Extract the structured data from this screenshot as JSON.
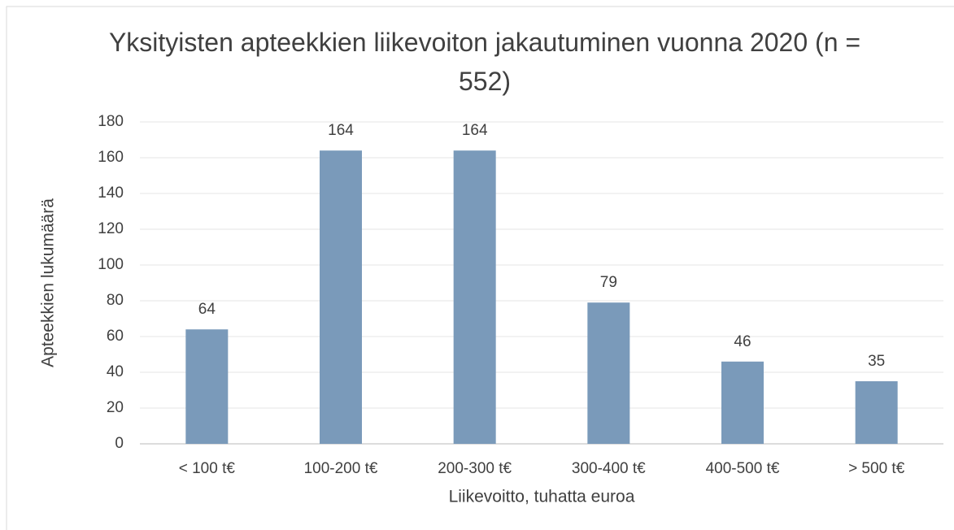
{
  "chart_data": {
    "type": "bar",
    "title": "Yksityisten apteekkien liikevoiton jakautuminen vuonna 2020 (n = 552)",
    "categories": [
      "< 100 t€",
      "100-200 t€",
      "200-300 t€",
      "300-400 t€",
      "400-500 t€",
      "> 500 t€"
    ],
    "values": [
      64,
      164,
      164,
      79,
      46,
      35
    ],
    "color": "#7a9aba",
    "xlabel": "Liikevoitto, tuhatta euroa",
    "ylabel": "Apteekkien lukumäärä",
    "ylim": [
      0,
      180
    ],
    "yticks": [
      0,
      20,
      40,
      60,
      80,
      100,
      120,
      140,
      160,
      180
    ],
    "grid": true
  }
}
